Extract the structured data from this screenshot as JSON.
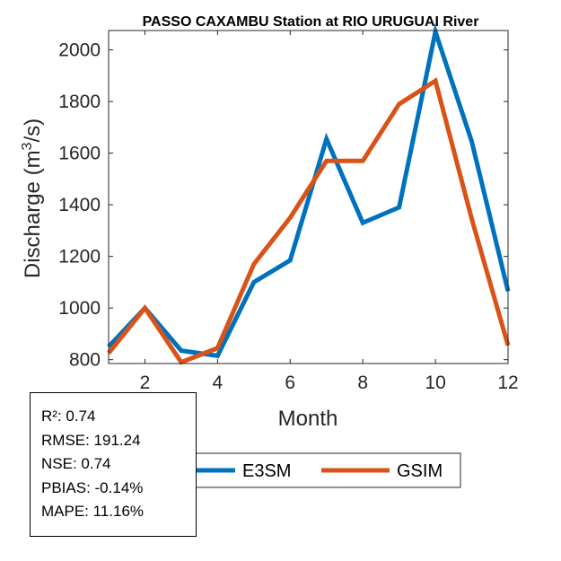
{
  "chart_data": {
    "type": "line",
    "title": "PASSO CAXAMBU  Station at  RIO URUGUAI  River",
    "xlabel": "Month",
    "ylabel_main": "Discharge (m",
    "ylabel_sup": "3",
    "ylabel_tail": "/s)",
    "x": [
      1,
      2,
      3,
      4,
      5,
      6,
      7,
      8,
      9,
      10,
      11,
      12
    ],
    "xlim": [
      1,
      12
    ],
    "ylim": [
      785,
      2075
    ],
    "xticks": [
      2,
      4,
      6,
      8,
      10,
      12
    ],
    "yticks": [
      800,
      1000,
      1200,
      1400,
      1600,
      1800,
      2000
    ],
    "series": [
      {
        "name": "E3SM",
        "color": "#0072BD",
        "values": [
          850,
          1000,
          835,
          815,
          1100,
          1185,
          1655,
          1330,
          1390,
          2070,
          1645,
          1065
        ]
      },
      {
        "name": "GSIM",
        "color": "#D95319",
        "values": [
          825,
          1000,
          790,
          845,
          1170,
          1350,
          1570,
          1570,
          1790,
          1880,
          1345,
          855
        ]
      }
    ],
    "legend_placement": "bottom-center"
  },
  "stats": [
    "R²: 0.74",
    "RMSE: 191.24",
    "NSE: 0.74",
    "PBIAS: -0.14%",
    "MAPE: 11.16%"
  ]
}
